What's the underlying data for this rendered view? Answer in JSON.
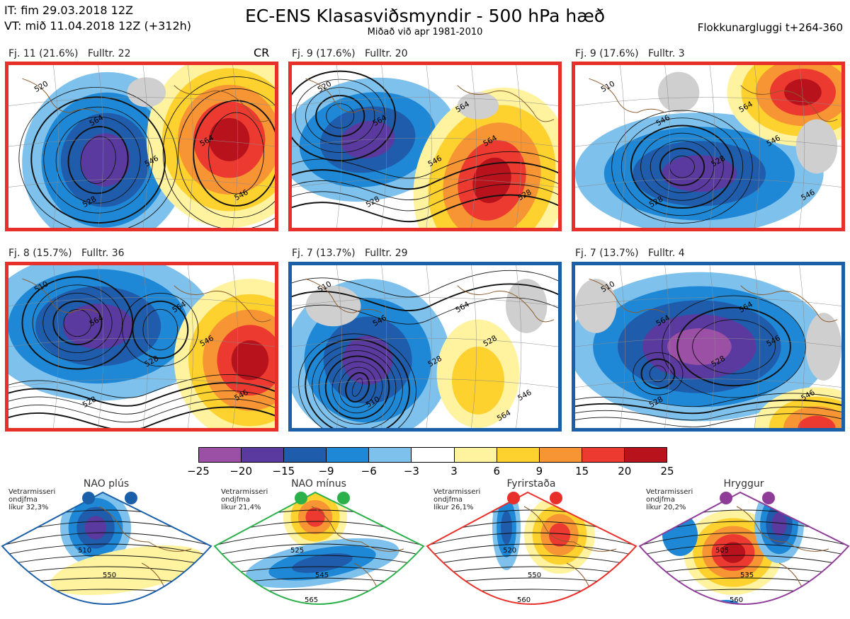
{
  "header": {
    "line1": "IT: fim 29.03.2018 12Z",
    "line2": "VT: mið 11.04.2018 12Z  (+312h)",
    "title": "EC-ENS Klasasviðsmyndir - 500 hPa hæð",
    "subtitle": "Miðað við apr 1981-2010",
    "right": "Flokkunargluggi t+264-360"
  },
  "panels": [
    {
      "label": "Fj. 11 (21.6%)",
      "members": "Fulltr. 22",
      "extra": "CR",
      "border": "#e8302a",
      "contours": [
        "520",
        "528",
        "546",
        "564",
        "546",
        "564"
      ]
    },
    {
      "label": "Fj. 9 (17.6%)",
      "members": "Fulltr. 20",
      "extra": "",
      "border": "#e8302a",
      "contours": [
        "520",
        "528",
        "546",
        "564",
        "528",
        "564",
        "564"
      ]
    },
    {
      "label": "Fj. 9 (17.6%)",
      "members": "Fulltr. 3",
      "extra": "",
      "border": "#e8302a",
      "contours": [
        "510",
        "528",
        "528",
        "546",
        "546",
        "546",
        "564"
      ]
    },
    {
      "label": "Fj. 8 (15.7%)",
      "members": "Fulltr. 36",
      "extra": "",
      "border": "#e8302a",
      "contours": [
        "510",
        "528",
        "528",
        "546",
        "546",
        "564",
        "564"
      ]
    },
    {
      "label": "Fj. 7 (13.7%)",
      "members": "Fulltr. 29",
      "extra": "",
      "border": "#1a5fa8",
      "contours": [
        "510",
        "510",
        "528",
        "528",
        "546",
        "546",
        "564",
        "564"
      ]
    },
    {
      "label": "Fj. 7 (13.7%)",
      "members": "Fulltr. 4",
      "extra": "",
      "border": "#1a5fa8",
      "contours": [
        "510",
        "528",
        "528",
        "546",
        "546",
        "564",
        "564"
      ]
    }
  ],
  "colorbar": {
    "ticks": [
      "−25",
      "−20",
      "−15",
      "−9",
      "−6",
      "−3",
      "3",
      "6",
      "9",
      "15",
      "20",
      "25"
    ],
    "colors": [
      "#9b4fa5",
      "#5a3a9f",
      "#1f5cab",
      "#1e88d6",
      "#7dc1ec",
      "#ffffff",
      "#fff3a0",
      "#fdd12e",
      "#f79433",
      "#ec3a30",
      "#b8131c"
    ]
  },
  "regimes": [
    {
      "name": "NAO plús",
      "note1": "Vetrarmisseri",
      "note2": "ondjfma",
      "note3": "líkur 32,3%",
      "color": "#1a5fa8",
      "contours": [
        "510",
        "550"
      ]
    },
    {
      "name": "NAO mínus",
      "note1": "Vetrarmisseri",
      "note2": "ondjfma",
      "note3": "líkur 21,4%",
      "color": "#2bb04a",
      "contours": [
        "525",
        "545",
        "565"
      ]
    },
    {
      "name": "Fyrirstaða",
      "note1": "Vetrarmisseri",
      "note2": "ondjfma",
      "note3": "líkur 26,1%",
      "color": "#e8302a",
      "contours": [
        "520",
        "550",
        "560"
      ]
    },
    {
      "name": "Hryggur",
      "note1": "Vetrarmisseri",
      "note2": "ondjfma",
      "note3": "líkur 20,2%",
      "color": "#8e3c97",
      "contours": [
        "505",
        "535",
        "560"
      ]
    }
  ]
}
